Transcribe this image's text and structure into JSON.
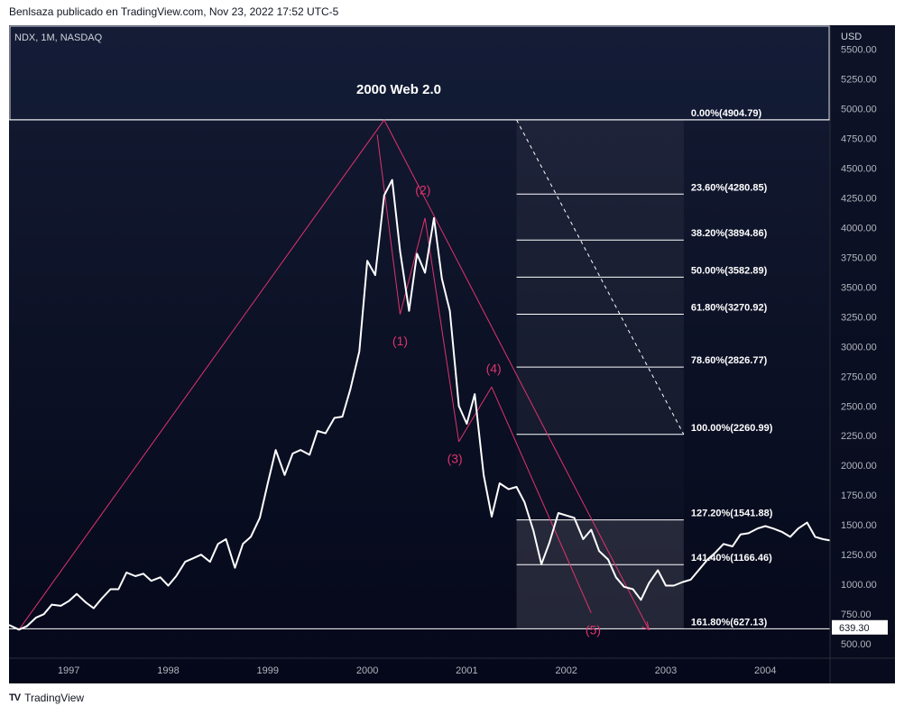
{
  "caption": "Benlsaza publicado en TradingView.com, Nov 23, 2022 17:52 UTC-5",
  "footer": {
    "logo_icon": "tradingview-logo-icon",
    "brand": "TradingView"
  },
  "chart_data": {
    "type": "line",
    "symbol": "NDX, 1M, NASDAQ",
    "currency": "USD",
    "title": "2000   Web 2.0",
    "x_range": [
      1996.4,
      2004.65
    ],
    "y_range": [
      380,
      5700
    ],
    "x_ticks": [
      "1997",
      "1998",
      "1999",
      "2000",
      "2001",
      "2002",
      "2003",
      "2004"
    ],
    "y_ticks": [
      "5500.00",
      "5250.00",
      "5000.00",
      "4750.00",
      "4500.00",
      "4250.00",
      "4000.00",
      "3750.00",
      "3500.00",
      "3250.00",
      "3000.00",
      "2750.00",
      "2500.00",
      "2250.00",
      "2000.00",
      "1750.00",
      "1500.00",
      "1250.00",
      "1000.00",
      "750.00",
      "500.00"
    ],
    "series": [
      {
        "name": "NDX",
        "color": "#ffffff",
        "x": [
          1996.4,
          1996.5,
          1996.58,
          1996.67,
          1996.75,
          1996.83,
          1996.92,
          1997.0,
          1997.08,
          1997.17,
          1997.25,
          1997.33,
          1997.42,
          1997.5,
          1997.58,
          1997.67,
          1997.75,
          1997.83,
          1997.92,
          1998.0,
          1998.08,
          1998.17,
          1998.25,
          1998.33,
          1998.42,
          1998.5,
          1998.58,
          1998.67,
          1998.75,
          1998.83,
          1998.92,
          1999.0,
          1999.08,
          1999.17,
          1999.25,
          1999.33,
          1999.42,
          1999.5,
          1999.58,
          1999.67,
          1999.75,
          1999.83,
          1999.92,
          2000.0,
          2000.08,
          2000.17,
          2000.25,
          2000.33,
          2000.42,
          2000.5,
          2000.58,
          2000.67,
          2000.75,
          2000.83,
          2000.92,
          2001.0,
          2001.08,
          2001.17,
          2001.25,
          2001.33,
          2001.42,
          2001.5,
          2001.58,
          2001.67,
          2001.75,
          2001.83,
          2001.92,
          2002.0,
          2002.08,
          2002.17,
          2002.25,
          2002.33,
          2002.42,
          2002.5,
          2002.58,
          2002.67,
          2002.75,
          2002.83,
          2002.92,
          2003.0,
          2003.08,
          2003.17,
          2003.25,
          2003.33,
          2003.42,
          2003.5,
          2003.58,
          2003.67,
          2003.75,
          2003.83,
          2003.92,
          2004.0,
          2004.08,
          2004.17,
          2004.25,
          2004.33,
          2004.42,
          2004.5,
          2004.58,
          2004.65
        ],
        "values": [
          660,
          620,
          650,
          720,
          750,
          830,
          820,
          860,
          920,
          850,
          800,
          880,
          960,
          960,
          1100,
          1070,
          1090,
          1030,
          1060,
          990,
          1070,
          1190,
          1220,
          1250,
          1190,
          1340,
          1380,
          1140,
          1340,
          1400,
          1560,
          1850,
          2130,
          1920,
          2100,
          2130,
          2090,
          2290,
          2270,
          2400,
          2410,
          2640,
          2960,
          3720,
          3600,
          4270,
          4400,
          3800,
          3300,
          3780,
          3620,
          4080,
          3570,
          3300,
          2500,
          2350,
          2600,
          1920,
          1570,
          1850,
          1800,
          1820,
          1690,
          1450,
          1170,
          1350,
          1600,
          1580,
          1560,
          1380,
          1460,
          1280,
          1210,
          1060,
          980,
          960,
          870,
          1010,
          1120,
          990,
          990,
          1020,
          1040,
          1120,
          1210,
          1270,
          1340,
          1320,
          1420,
          1430,
          1470,
          1490,
          1470,
          1440,
          1400,
          1470,
          1520,
          1400,
          1380,
          1370
        ]
      }
    ],
    "fib_levels": [
      {
        "pct": "0.00%",
        "price": 4904.79,
        "label": "0.00%(4904.79)"
      },
      {
        "pct": "23.60%",
        "price": 4280.85,
        "label": "23.60%(4280.85)"
      },
      {
        "pct": "38.20%",
        "price": 3894.86,
        "label": "38.20%(3894.86)"
      },
      {
        "pct": "50.00%",
        "price": 3582.89,
        "label": "50.00%(3582.89)"
      },
      {
        "pct": "61.80%",
        "price": 3270.92,
        "label": "61.80%(3270.92)"
      },
      {
        "pct": "78.60%",
        "price": 2826.77,
        "label": "78.60%(2826.77)"
      },
      {
        "pct": "100.00%",
        "price": 2260.99,
        "label": "100.00%(2260.99)"
      },
      {
        "pct": "127.20%",
        "price": 1541.88,
        "label": "127.20%(1541.88)"
      },
      {
        "pct": "141.40%",
        "price": 1166.46,
        "label": "141.40%(1166.46)"
      },
      {
        "pct": "161.80%",
        "price": 627.13,
        "label": "161.80%(627.13)"
      }
    ],
    "fib_time_range": [
      2001.5,
      2003.18
    ],
    "waves": [
      {
        "label": "(1)",
        "x": 2000.33,
        "y": 3270
      },
      {
        "label": "(2)",
        "x": 2000.58,
        "y": 4080
      },
      {
        "label": "(3)",
        "x": 2000.92,
        "y": 2200
      },
      {
        "label": "(4)",
        "x": 2001.25,
        "y": 2660
      },
      {
        "label": "(5)",
        "x": 2002.25,
        "y": 750
      }
    ],
    "wave_label_points": [
      {
        "label": "(1)",
        "x": 2000.33,
        "y": 3010
      },
      {
        "label": "(2)",
        "x": 2000.56,
        "y": 4280
      },
      {
        "label": "(3)",
        "x": 2000.88,
        "y": 2020
      },
      {
        "label": "(4)",
        "x": 2001.27,
        "y": 2780
      },
      {
        "label": "(5)",
        "x": 2002.27,
        "y": 580
      }
    ],
    "pink_lines": [
      {
        "from": [
          1996.5,
          620
        ],
        "to": [
          2000.17,
          4905
        ]
      },
      {
        "from": [
          2000.17,
          4905
        ],
        "to": [
          2002.83,
          620
        ]
      },
      {
        "from": [
          2000.1,
          4780
        ],
        "to": [
          2000.33,
          3270
        ]
      },
      {
        "from": [
          2000.33,
          3270
        ],
        "to": [
          2000.58,
          4080
        ]
      },
      {
        "from": [
          2000.58,
          4080
        ],
        "to": [
          2000.92,
          2200
        ]
      },
      {
        "from": [
          2000.92,
          2200
        ],
        "to": [
          2001.25,
          2660
        ]
      },
      {
        "from": [
          2001.25,
          2660
        ],
        "to": [
          2002.25,
          760
        ]
      }
    ],
    "dashed_line": {
      "from": [
        2001.5,
        4905
      ],
      "to": [
        2003.18,
        2261
      ]
    },
    "header_box": {
      "x_range": [
        1996.4,
        2004.65
      ],
      "y_range": [
        4905,
        5700
      ]
    },
    "last_price": "639.30",
    "last_price_value": 639.3
  }
}
